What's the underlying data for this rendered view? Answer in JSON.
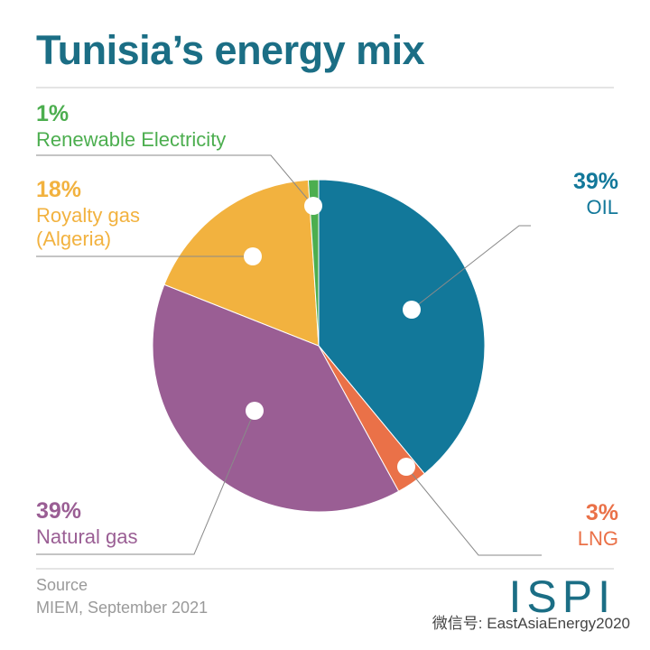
{
  "chart_data": {
    "type": "pie",
    "title": "Tunisia’s energy mix",
    "categories": [
      "OIL",
      "LNG",
      "Natural gas",
      "Royalty gas (Algeria)",
      "Renewable Electricity"
    ],
    "values": [
      39,
      3,
      39,
      18,
      1
    ],
    "value_labels": [
      "39%",
      "3%",
      "39%",
      "18%",
      "1%"
    ],
    "colors": [
      "#12789a",
      "#ea7148",
      "#9a5e94",
      "#f2b23f",
      "#4cae4f"
    ],
    "source_label": "Source",
    "source": "MIEM, September 2021"
  },
  "logo": "ISPI",
  "watermark": "微信号: EastAsiaEnergy2020"
}
